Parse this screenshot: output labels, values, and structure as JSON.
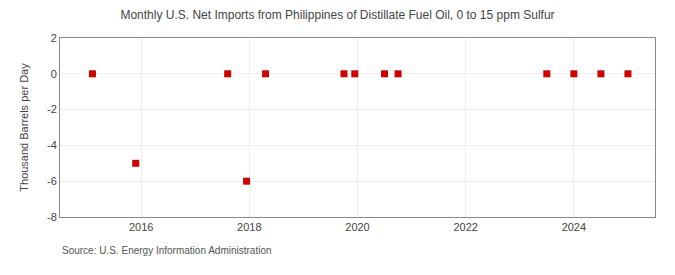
{
  "chart_data": {
    "type": "scatter",
    "title": "Monthly U.S. Net Imports from Philippines of Distillate Fuel Oil, 0 to 15 ppm Sulfur",
    "ylabel": "Thousand Barrels per Day",
    "annotations": [
      "Source: U.S. Energy Information Administration"
    ],
    "x": [
      2015.1,
      2015.9,
      2017.6,
      2017.95,
      2018.3,
      2019.75,
      2019.95,
      2020.5,
      2020.75,
      2023.5,
      2024.0,
      2024.5,
      2025.0
    ],
    "values": [
      0,
      -5.0,
      0,
      -6.0,
      0,
      0,
      0,
      0,
      0,
      0,
      0,
      0,
      0
    ],
    "color": "#cc0000",
    "marker": "square",
    "xlim": [
      2014.5,
      2025.5
    ],
    "xticks": [
      2016,
      2018,
      2020,
      2022,
      2024
    ],
    "ylim": [
      -8,
      2
    ],
    "yticks": [
      -8,
      -6,
      -4,
      -2,
      0,
      2
    ],
    "grid": true
  }
}
